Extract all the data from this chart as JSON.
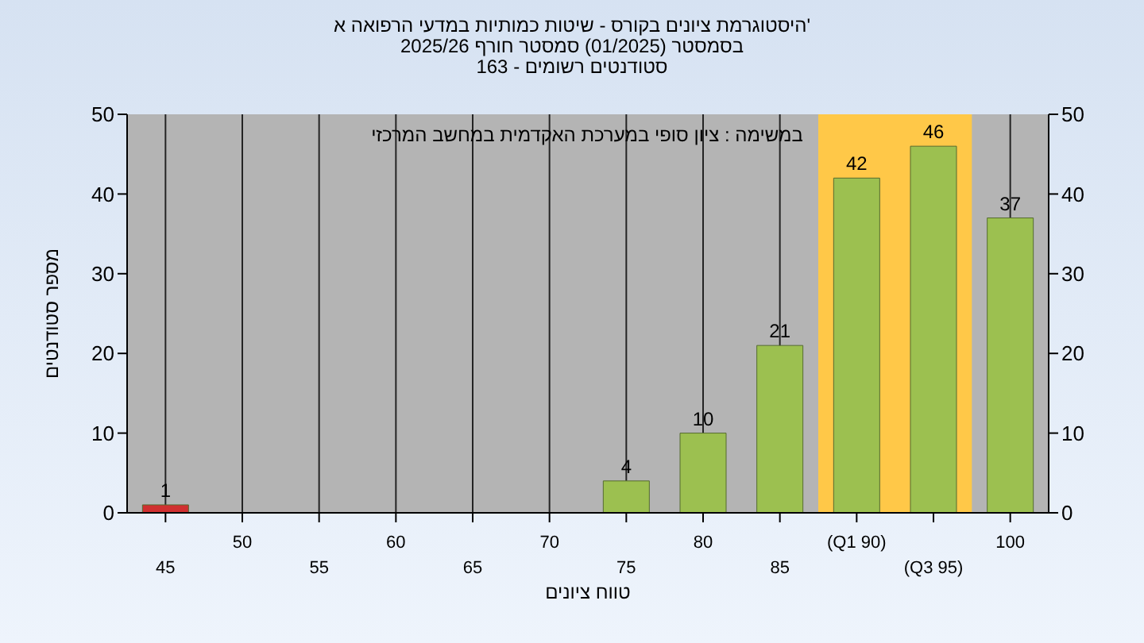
{
  "chart_data": {
    "type": "bar",
    "title": "היסטוגרמת ציונים בקורס - שיטות כמותיות במדעי הרפואה א'",
    "subtitle": "בסמסטר (01/2025) סמסטר חורף 2025/26\nסטודנטים רשומים - 163",
    "xlabel": "טווח ציונים",
    "ylabel": "מספר סטודנטים",
    "annotations": [
      "במשימה : ציון סופי במערכת האקדמית במחשב המרכזי"
    ],
    "categories": [
      "45",
      "50",
      "55",
      "60",
      "65",
      "70",
      "75",
      "80",
      "85",
      "(Q1 90)",
      "(Q3 95)",
      "100"
    ],
    "values": [
      1,
      0,
      0,
      0,
      0,
      0,
      4,
      10,
      21,
      42,
      46,
      37
    ],
    "colors": [
      "#d03030",
      "#9cc050",
      "#9cc050",
      "#9cc050",
      "#9cc050",
      "#9cc050",
      "#9cc050",
      "#9cc050",
      "#9cc050",
      "#9cc050",
      "#9cc050",
      "#9cc050"
    ],
    "value_labels": [
      "1",
      null,
      null,
      null,
      null,
      null,
      "4",
      "10",
      "21",
      "42",
      "46",
      "37"
    ],
    "bands": [
      {
        "axis": "x",
        "from": "(Q1 90)",
        "to": "(Q3 95)",
        "color": "#ffc848"
      }
    ],
    "ylim": [
      0,
      50
    ],
    "yticks": [
      0,
      10,
      20,
      30,
      40,
      50
    ],
    "y2lim": [
      0,
      50
    ],
    "y2ticks": [
      0,
      10,
      20,
      30,
      40,
      50
    ],
    "grid": "x",
    "legend": false
  }
}
